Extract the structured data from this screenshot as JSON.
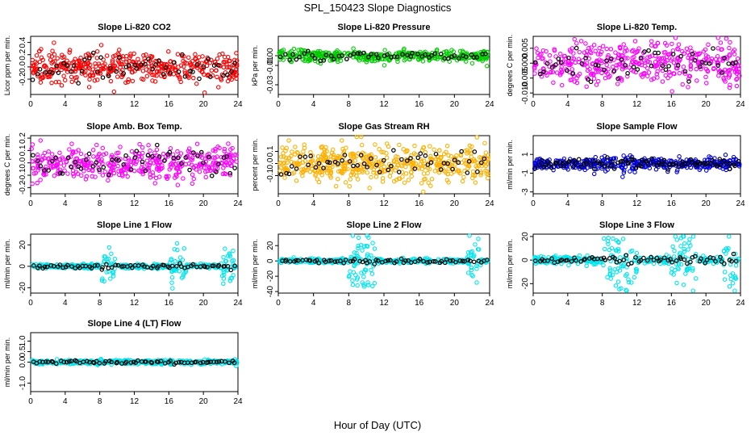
{
  "title": "SPL_150423  Slope Diagnostics",
  "xlabel": "Hour of Day (UTC)",
  "chart_data": [
    {
      "type": "scatter",
      "title": "Slope Li-820 CO2",
      "ylabel": "Licor ppm per min.",
      "color": "#ff0000",
      "xlim": [
        0,
        24
      ],
      "ylim": [
        -0.45,
        0.5
      ],
      "xticks": [
        0,
        4,
        8,
        12,
        16,
        20,
        24
      ],
      "yticks": [
        -0.2,
        0.0,
        0.2,
        0.4
      ],
      "ytick_labels": [
        "-0.2",
        "0.0",
        "0.2",
        "0.4"
      ],
      "n_points": 420,
      "n_black": 55,
      "spread": 0.12,
      "peak_windows": [],
      "y_range_observed": [
        -0.42,
        0.48
      ]
    },
    {
      "type": "scatter",
      "title": "Slope Li-820 Pressure",
      "ylabel": "kPa per min.",
      "color": "#00cc00",
      "xlim": [
        0,
        24
      ],
      "ylim": [
        -0.04,
        0.02
      ],
      "xticks": [
        0,
        4,
        8,
        12,
        16,
        20,
        24
      ],
      "yticks": [
        -0.03,
        -0.01,
        0.0
      ],
      "ytick_labels": [
        "-0.03",
        "-0.01",
        "0.00"
      ],
      "n_points": 420,
      "n_black": 55,
      "spread": 0.003,
      "peak_windows": [],
      "y_range_observed": [
        -0.04,
        0.018
      ]
    },
    {
      "type": "scatter",
      "title": "Slope Li-820 Temp.",
      "ylabel": "degrees C per min.",
      "color": "#ff00ff",
      "xlim": [
        0,
        24
      ],
      "ylim": [
        -0.0105,
        0.009
      ],
      "xticks": [
        0,
        4,
        8,
        12,
        16,
        20,
        24
      ],
      "yticks": [
        -0.01,
        -0.005,
        0.0,
        0.005
      ],
      "ytick_labels": [
        "-0.010",
        "-0.005",
        "0.000",
        "0.005"
      ],
      "n_points": 420,
      "n_black": 55,
      "spread": 0.0035,
      "peak_windows": [],
      "y_range_observed": [
        -0.0105,
        0.0085
      ]
    },
    {
      "type": "scatter",
      "title": "Slope Amb. Box Temp.",
      "ylabel": "degrees C per min.",
      "color": "#ff00ff",
      "xlim": [
        0,
        24
      ],
      "ylim": [
        -0.25,
        0.22
      ],
      "xticks": [
        0,
        4,
        8,
        12,
        16,
        20,
        24
      ],
      "yticks": [
        -0.2,
        -0.1,
        0.0,
        0.1,
        0.2
      ],
      "ytick_labels": [
        "-0.2",
        "-0.1",
        "0.0",
        "0.1",
        "0.2"
      ],
      "n_points": 420,
      "n_black": 55,
      "spread": 0.07,
      "peak_windows": [],
      "y_range_observed": [
        -0.22,
        0.2
      ]
    },
    {
      "type": "scatter",
      "title": "Slope Gas Stream RH",
      "ylabel": "percent per min.",
      "color": "#ffb000",
      "xlim": [
        0,
        24
      ],
      "ylim": [
        -0.25,
        0.23
      ],
      "xticks": [
        0,
        4,
        8,
        12,
        16,
        20,
        24
      ],
      "yticks": [
        -0.1,
        0.0,
        0.1
      ],
      "ytick_labels": [
        "-0.1",
        "0.0",
        "0.1"
      ],
      "n_points": 500,
      "n_black": 55,
      "spread": 0.07,
      "peak_windows": [],
      "y_range_observed": [
        -0.24,
        0.22
      ]
    },
    {
      "type": "scatter",
      "title": "Slope Sample Flow",
      "ylabel": "ml/min per min.",
      "color": "#0000dd",
      "xlim": [
        0,
        24
      ],
      "ylim": [
        -3.2,
        3.0
      ],
      "xticks": [
        0,
        4,
        8,
        12,
        16,
        20,
        24
      ],
      "yticks": [
        -3,
        -1,
        1
      ],
      "ytick_labels": [
        "-3",
        "-1",
        "1"
      ],
      "n_points": 400,
      "n_black": 90,
      "spread": 0.3,
      "peak_windows": [
        [
          8,
          12,
          1.6
        ],
        [
          16,
          18,
          1.1
        ]
      ],
      "y_range_observed": [
        -3.0,
        2.4
      ]
    },
    {
      "type": "scatter",
      "title": "Slope Line 1 Flow",
      "ylabel": "ml/min per min.",
      "color": "#00e5ee",
      "xlim": [
        0,
        24
      ],
      "ylim": [
        -25,
        30
      ],
      "xticks": [
        0,
        4,
        8,
        12,
        16,
        20,
        24
      ],
      "yticks": [
        -20,
        0,
        20
      ],
      "ytick_labels": [
        "-20",
        "0",
        "20"
      ],
      "n_points": 400,
      "n_black": 70,
      "spread": 1.0,
      "peak_windows": [
        [
          8,
          10,
          9
        ],
        [
          16,
          18,
          11
        ],
        [
          22,
          23.5,
          9
        ]
      ],
      "y_range_observed": [
        -24,
        29
      ]
    },
    {
      "type": "scatter",
      "title": "Slope Line 2 Flow",
      "ylabel": "ml/min per min.",
      "color": "#00e5ee",
      "xlim": [
        0,
        24
      ],
      "ylim": [
        -42,
        35
      ],
      "xticks": [
        0,
        4,
        8,
        12,
        16,
        20,
        24
      ],
      "yticks": [
        -40,
        -20,
        0,
        20
      ],
      "ytick_labels": [
        "-40",
        "-20",
        "0",
        "20"
      ],
      "n_points": 400,
      "n_black": 70,
      "spread": 1.5,
      "peak_windows": [
        [
          8,
          11,
          12
        ],
        [
          21.5,
          23,
          11
        ]
      ],
      "y_range_observed": [
        -40,
        33
      ]
    },
    {
      "type": "scatter",
      "title": "Slope Line 3 Flow",
      "ylabel": "ml/min per min.",
      "color": "#00e5ee",
      "xlim": [
        0,
        24
      ],
      "ylim": [
        -28,
        22
      ],
      "xticks": [
        0,
        4,
        8,
        12,
        16,
        20,
        24
      ],
      "yticks": [
        -20,
        0,
        20
      ],
      "ytick_labels": [
        "-20",
        "0",
        "20"
      ],
      "n_points": 400,
      "n_black": 70,
      "spread": 1.5,
      "peak_windows": [
        [
          8,
          12,
          8
        ],
        [
          16,
          19,
          9
        ],
        [
          22,
          23.5,
          10
        ]
      ],
      "y_range_observed": [
        -26,
        20
      ]
    },
    {
      "type": "scatter",
      "title": "Slope Line 4 (LT) Flow",
      "ylabel": "ml/min per min.",
      "color": "#00e5ee",
      "xlim": [
        0,
        24
      ],
      "ylim": [
        -1.4,
        1.4
      ],
      "xticks": [
        0,
        4,
        8,
        12,
        16,
        20,
        24
      ],
      "yticks": [
        -1.0,
        0.0,
        0.5,
        1.0
      ],
      "ytick_labels": [
        "-1.0",
        "0.0",
        "0.5",
        "1.0"
      ],
      "n_points": 420,
      "n_black": 70,
      "spread": 0.05,
      "peak_windows": [
        [
          8,
          11,
          0.5
        ],
        [
          16,
          19,
          0.45
        ],
        [
          22,
          23.5,
          0.3
        ]
      ],
      "y_range_observed": [
        -1.3,
        1.25
      ]
    }
  ]
}
